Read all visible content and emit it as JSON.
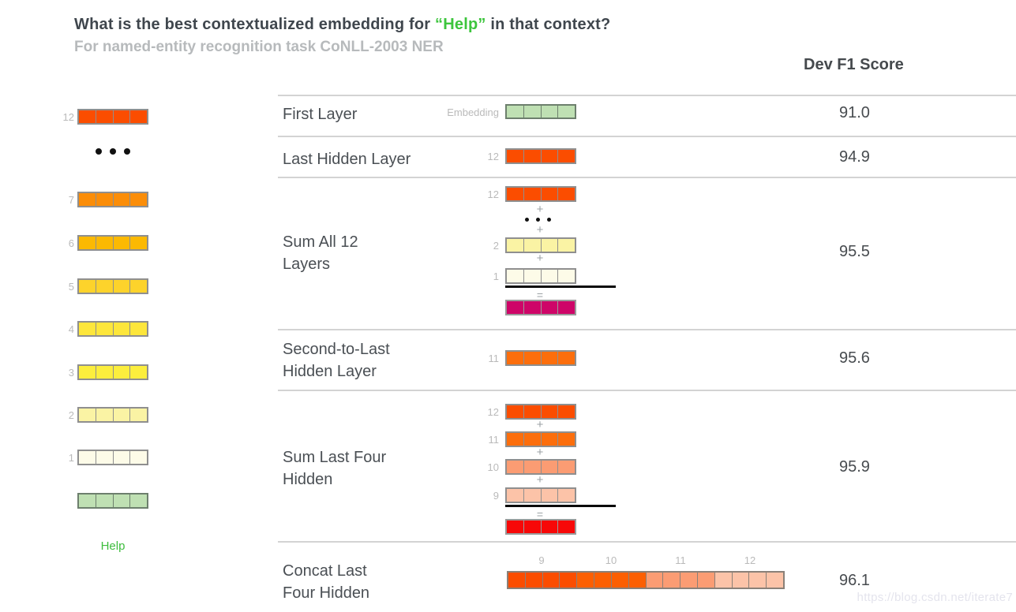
{
  "header": {
    "title_prefix": "What is the best contextualized embedding for ",
    "title_highlight": "“Help”",
    "title_suffix": " in that context?",
    "subtitle": "For named-entity recognition task CoNLL-2003 NER",
    "score_header": "Dev F1 Score"
  },
  "colors": {
    "highlight_green": "#3dc53d",
    "layer_12": "#fb4d00",
    "layer_11": "#fc6e0c",
    "layer_10": "#fb9c73",
    "layer_9": "#fcc3a8",
    "layer_7": "#fb8d08",
    "layer_6": "#fcb902",
    "layer_5": "#fdd32b",
    "layer_4": "#fde63b",
    "layer_3": "#fcee3d",
    "layer_2": "#faf3a4",
    "layer_1": "#fdfbe8",
    "embedding": "#bfe0b3",
    "sum_all_result": "#ce0568",
    "sum_four_result": "#f70808"
  },
  "ops": {
    "plus": "+",
    "equals": "="
  },
  "left_stack": {
    "labels": {
      "l12": "12",
      "l7": "7",
      "l6": "6",
      "l5": "5",
      "l4": "4",
      "l3": "3",
      "l2": "2",
      "l1": "1"
    },
    "word": "Help"
  },
  "rows": [
    {
      "label": "First Layer",
      "vector_label": "Embedding",
      "score": "91.0"
    },
    {
      "label": "Last Hidden Layer",
      "vector_label": "12",
      "score": "94.9"
    },
    {
      "label": "Sum All 12 Layers",
      "operands": [
        "12",
        "2",
        "1"
      ],
      "score": "95.5"
    },
    {
      "label": "Second-to-Last Hidden Layer",
      "vector_label": "11",
      "score": "95.6"
    },
    {
      "label": "Sum Last Four Hidden",
      "operands": [
        "12",
        "11",
        "10",
        "9"
      ],
      "score": "95.9"
    },
    {
      "label": "Concat Last Four Hidden",
      "concat_labels": [
        "9",
        "10",
        "11",
        "12"
      ],
      "score": "96.1"
    }
  ],
  "concat": {
    "group_colors": [
      "#fb4d00",
      "#fc5f02",
      "#fb9c73",
      "#fcc3a8"
    ]
  },
  "watermark": "https://blog.csdn.net/iterate7"
}
